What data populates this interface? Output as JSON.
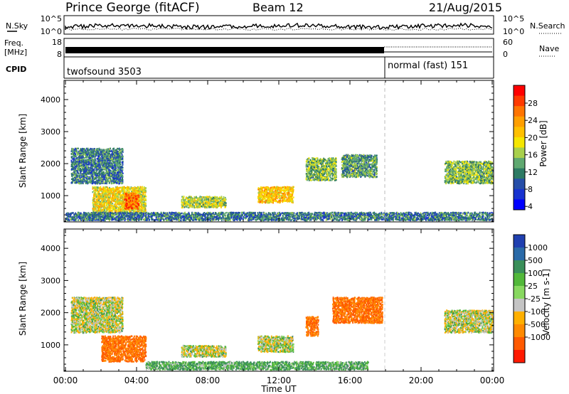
{
  "header": {
    "station": "Prince George (fitACF)",
    "beam": "Beam 12",
    "date": "21/Aug/2015"
  },
  "strips": {
    "nsky_label": "N.Sky",
    "nsky_ticks": [
      "10^5",
      "10^0"
    ],
    "nsearch_label": "N.Search",
    "freq_label_1": "Freq.",
    "freq_label_2": "[MHz]",
    "freq_ticks": [
      "18",
      "8"
    ],
    "nave_label": "Nave",
    "nave_ticks": [
      "60",
      "0"
    ],
    "cpid_label": "CPID",
    "cpid_left": "twofsound 3503",
    "cpid_right": "normal (fast) 151"
  },
  "colorbars": {
    "power": {
      "label": "Power [dB]",
      "ticks": [
        "28",
        "24",
        "20",
        "16",
        "12",
        "8",
        "4"
      ],
      "colors": [
        "#ff0000",
        "#ff3a00",
        "#ff7400",
        "#ff9f00",
        "#ffc000",
        "#f5e600",
        "#a8d04c",
        "#5fa870",
        "#2d7a64",
        "#264ea8",
        "#1833d0",
        "#0000ff"
      ]
    },
    "velocity": {
      "label": "Velocity [m s-1]",
      "ticks": [
        "1000",
        "500",
        "100",
        "25",
        "-25",
        "-100",
        "-500",
        "-1000"
      ],
      "colors": [
        "#2040b0",
        "#2a6aa8",
        "#3a8f5a",
        "#52b83a",
        "#88d860",
        "#c4c4c4",
        "#ffb000",
        "#ff8a00",
        "#ff5a00",
        "#ff1a00"
      ]
    }
  },
  "axes": {
    "ylabel": "Slant Range [km]",
    "xlabel": "Time UT",
    "x_ticks": [
      "00:00",
      "04:00",
      "08:00",
      "12:00",
      "16:00",
      "20:00",
      "00:00"
    ],
    "y_ticks": [
      "4000",
      "3000",
      "2000",
      "1000"
    ]
  },
  "chart_data": [
    {
      "type": "heatmap",
      "panel": "power",
      "x_range": [
        "00:00",
        "24:00"
      ],
      "y_range_km": [
        180,
        4600
      ],
      "cpid_switch_time": "18:00",
      "echo_regions": [
        {
          "t0": 0.3,
          "t1": 3.2,
          "r0": 1400,
          "r1": 2500,
          "power_db": 10
        },
        {
          "t0": 1.5,
          "t1": 4.5,
          "r0": 500,
          "r1": 1300,
          "power_db": 18
        },
        {
          "t0": 3.3,
          "t1": 4.1,
          "r0": 600,
          "r1": 1100,
          "power_db": 26
        },
        {
          "t0": 6.5,
          "t1": 9.0,
          "r0": 650,
          "r1": 1000,
          "power_db": 16
        },
        {
          "t0": 10.8,
          "t1": 12.8,
          "r0": 800,
          "r1": 1300,
          "power_db": 20
        },
        {
          "t0": 13.5,
          "t1": 15.2,
          "r0": 1500,
          "r1": 2200,
          "power_db": 14
        },
        {
          "t0": 15.5,
          "t1": 17.5,
          "r0": 1600,
          "r1": 2300,
          "power_db": 12
        },
        {
          "t0": 21.3,
          "t1": 24.0,
          "r0": 1400,
          "r1": 2100,
          "power_db": 14
        },
        {
          "t0": 0.0,
          "t1": 24.0,
          "r0": 250,
          "r1": 500,
          "power_db": 10
        }
      ]
    },
    {
      "type": "heatmap",
      "panel": "velocity",
      "x_range": [
        "00:00",
        "24:00"
      ],
      "y_range_km": [
        180,
        4600
      ],
      "cpid_switch_time": "18:00",
      "echo_regions": [
        {
          "t0": 0.3,
          "t1": 3.2,
          "r0": 1400,
          "r1": 2500,
          "velocity_ms": 0
        },
        {
          "t0": 2.0,
          "t1": 4.5,
          "r0": 500,
          "r1": 1300,
          "velocity_ms": -300
        },
        {
          "t0": 6.5,
          "t1": 9.0,
          "r0": 650,
          "r1": 1000,
          "velocity_ms": 0
        },
        {
          "t0": 10.8,
          "t1": 12.8,
          "r0": 800,
          "r1": 1300,
          "velocity_ms": 0
        },
        {
          "t0": 13.5,
          "t1": 14.2,
          "r0": 1300,
          "r1": 1900,
          "velocity_ms": -300
        },
        {
          "t0": 15.0,
          "t1": 17.8,
          "r0": 1700,
          "r1": 2500,
          "velocity_ms": -300
        },
        {
          "t0": 21.3,
          "t1": 24.0,
          "r0": 1400,
          "r1": 2100,
          "velocity_ms": 0
        },
        {
          "t0": 4.5,
          "t1": 17.0,
          "r0": 250,
          "r1": 500,
          "velocity_ms": 60
        }
      ]
    }
  ]
}
